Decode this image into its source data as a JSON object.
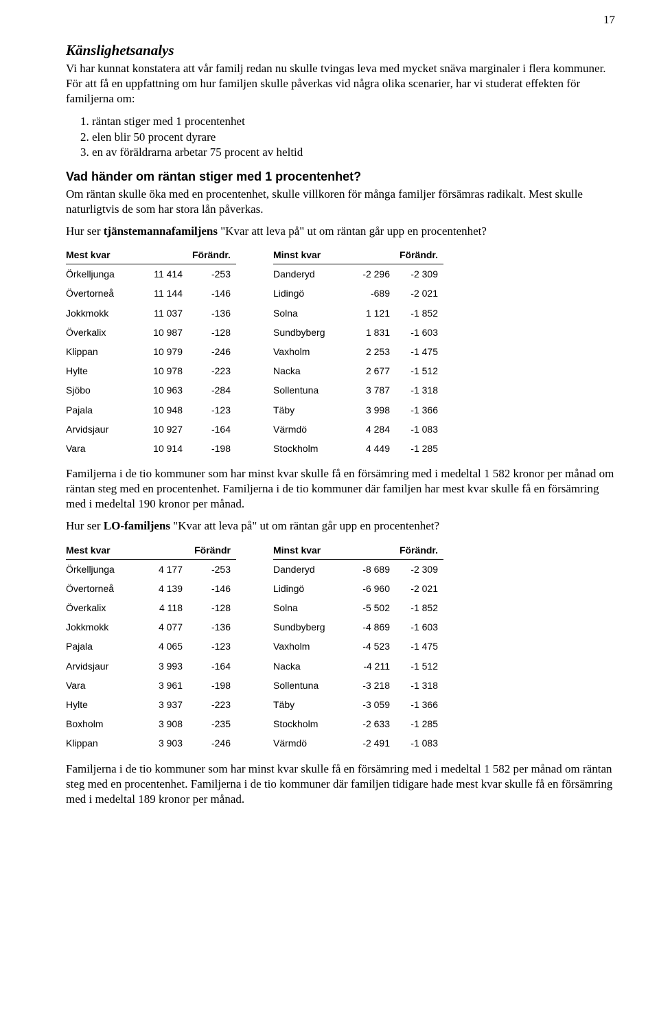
{
  "pageNumber": "17",
  "section1": {
    "heading": "Känslighetsanalys",
    "para1": "Vi har kunnat konstatera att vår familj redan nu skulle tvingas leva med mycket snäva marginaler i flera kommuner. För att få en uppfattning om hur familjen skulle påverkas vid några olika scenarier, har vi studerat effekten för familjerna om:",
    "listItems": [
      "räntan stiger med 1 procentenhet",
      "elen blir 50 procent dyrare",
      "en av föräldrarna arbetar 75 procent av heltid"
    ]
  },
  "section2": {
    "heading": "Vad händer om räntan stiger med 1 procentenhet?",
    "para1": "Om räntan skulle öka med en procentenhet, skulle villkoren för många familjer försämras radikalt. Mest skulle naturligtvis de som har stora lån påverkas.",
    "para2_prefix": "Hur ser ",
    "para2_bold": "tjänstemannafamiljens",
    "para2_suffix": " \"Kvar att leva på\" ut om räntan går upp en procentenhet?"
  },
  "tableA_left": {
    "headers": [
      "Mest kvar",
      "",
      "Förändr."
    ],
    "rows": [
      [
        "Örkelljunga",
        "11 414",
        "-253"
      ],
      [
        "Övertorneå",
        "11 144",
        "-146"
      ],
      [
        "Jokkmokk",
        "11 037",
        "-136"
      ],
      [
        "Överkalix",
        "10 987",
        "-128"
      ],
      [
        "Klippan",
        "10 979",
        "-246"
      ],
      [
        "Hylte",
        "10 978",
        "-223"
      ],
      [
        "Sjöbo",
        "10 963",
        "-284"
      ],
      [
        "Pajala",
        "10 948",
        "-123"
      ],
      [
        "Arvidsjaur",
        "10 927",
        "-164"
      ],
      [
        "Vara",
        "10 914",
        "-198"
      ]
    ]
  },
  "tableA_right": {
    "headers": [
      "Minst kvar",
      "",
      "Förändr."
    ],
    "rows": [
      [
        "Danderyd",
        "-2 296",
        "-2 309"
      ],
      [
        "Lidingö",
        "-689",
        "-2 021"
      ],
      [
        "Solna",
        "1 121",
        "-1 852"
      ],
      [
        "Sundbyberg",
        "1 831",
        "-1 603"
      ],
      [
        "Vaxholm",
        "2 253",
        "-1 475"
      ],
      [
        "Nacka",
        "2 677",
        "-1 512"
      ],
      [
        "Sollentuna",
        "3 787",
        "-1 318"
      ],
      [
        "Täby",
        "3 998",
        "-1 366"
      ],
      [
        "Värmdö",
        "4 284",
        "-1 083"
      ],
      [
        "Stockholm",
        "4 449",
        "-1 285"
      ]
    ]
  },
  "section3": {
    "para1": "Familjerna i de tio kommuner som har minst kvar skulle få en försämring med i medeltal 1 582 kronor per månad om räntan steg med en procentenhet. Familjerna i de tio kommuner där familjen har mest kvar skulle få en försämring med i medeltal 190 kronor per månad.",
    "para2_prefix": "Hur ser ",
    "para2_bold": "LO-familjens",
    "para2_suffix": " \"Kvar att leva på\" ut om räntan går upp en procentenhet?"
  },
  "tableB_left": {
    "headers": [
      "Mest kvar",
      "",
      "Förändr"
    ],
    "rows": [
      [
        "Örkelljunga",
        "4 177",
        "-253"
      ],
      [
        "Övertorneå",
        "4 139",
        "-146"
      ],
      [
        "Överkalix",
        "4 118",
        "-128"
      ],
      [
        "Jokkmokk",
        "4 077",
        "-136"
      ],
      [
        "Pajala",
        "4 065",
        "-123"
      ],
      [
        "Arvidsjaur",
        "3 993",
        "-164"
      ],
      [
        "Vara",
        "3 961",
        "-198"
      ],
      [
        "Hylte",
        "3 937",
        "-223"
      ],
      [
        "Boxholm",
        "3 908",
        "-235"
      ],
      [
        "Klippan",
        "3 903",
        "-246"
      ]
    ]
  },
  "tableB_right": {
    "headers": [
      "Minst kvar",
      "",
      "Förändr."
    ],
    "rows": [
      [
        "Danderyd",
        "-8 689",
        "-2 309"
      ],
      [
        "Lidingö",
        "-6 960",
        "-2 021"
      ],
      [
        "Solna",
        "-5 502",
        "-1 852"
      ],
      [
        "Sundbyberg",
        "-4 869",
        "-1 603"
      ],
      [
        "Vaxholm",
        "-4 523",
        "-1 475"
      ],
      [
        "Nacka",
        "-4 211",
        "-1 512"
      ],
      [
        "Sollentuna",
        "-3 218",
        "-1 318"
      ],
      [
        "Täby",
        "-3 059",
        "-1 366"
      ],
      [
        "Stockholm",
        "-2 633",
        "-1 285"
      ],
      [
        "Värmdö",
        "-2 491",
        "-1 083"
      ]
    ]
  },
  "section4": {
    "para1": "Familjerna i de tio kommuner som har minst kvar skulle få en försämring med i medeltal 1 582 per månad om räntan steg med en procentenhet. Familjerna i de tio kommuner där familjen tidigare hade mest kvar skulle få en försämring med i medeltal 189 kronor per månad."
  }
}
